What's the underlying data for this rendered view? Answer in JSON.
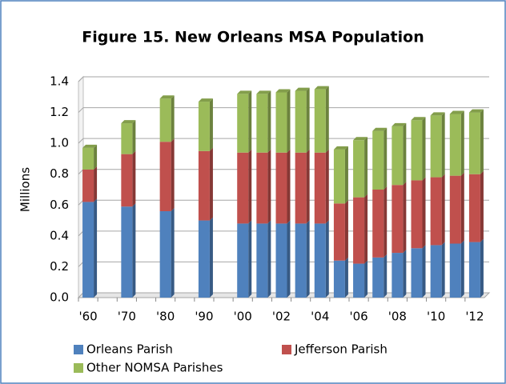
{
  "chart_data": {
    "type": "stacked-bar",
    "title": "Figure 15. New Orleans MSA Population",
    "y_label": "Millions",
    "categories": [
      "'60",
      null,
      "'70",
      null,
      "'80",
      null,
      "'90",
      null,
      "'00",
      null,
      "'02",
      null,
      "'04",
      null,
      "'06",
      null,
      "'08",
      null,
      "'10",
      null,
      "'12"
    ],
    "series": [
      {
        "name": "Orleans Parish",
        "color": "#4f81bd",
        "values": [
          0.62,
          null,
          0.59,
          null,
          0.56,
          null,
          0.5,
          null,
          0.48,
          0.48,
          0.48,
          0.48,
          0.48,
          0.24,
          0.22,
          0.26,
          0.29,
          0.32,
          0.34,
          0.35,
          0.36
        ]
      },
      {
        "name": "Jefferson Parish",
        "color": "#c0504d",
        "values": [
          0.21,
          null,
          0.34,
          null,
          0.45,
          null,
          0.45,
          null,
          0.46,
          0.46,
          0.46,
          0.46,
          0.46,
          0.37,
          0.43,
          0.44,
          0.44,
          0.44,
          0.44,
          0.44,
          0.44
        ]
      },
      {
        "name": "Other NOMSA Parishes",
        "color": "#9bbb59",
        "values": [
          0.14,
          null,
          0.2,
          null,
          0.28,
          null,
          0.32,
          null,
          0.38,
          0.38,
          0.39,
          0.4,
          0.41,
          0.35,
          0.37,
          0.38,
          0.38,
          0.39,
          0.4,
          0.4,
          0.4
        ]
      }
    ],
    "ylim": [
      0,
      1.4
    ],
    "yticks": [
      {
        "value": 0,
        "label": "0.0"
      },
      {
        "value": 0.2,
        "label": "0.2"
      },
      {
        "value": 0.4,
        "label": "0.4"
      },
      {
        "value": 0.6,
        "label": "0.6"
      },
      {
        "value": 0.8,
        "label": "0.8"
      },
      {
        "value": 1.0,
        "label": "1.0"
      },
      {
        "value": 1.2,
        "label": "1.2"
      },
      {
        "value": 1.4,
        "label": "1.4"
      }
    ],
    "grid": true
  }
}
